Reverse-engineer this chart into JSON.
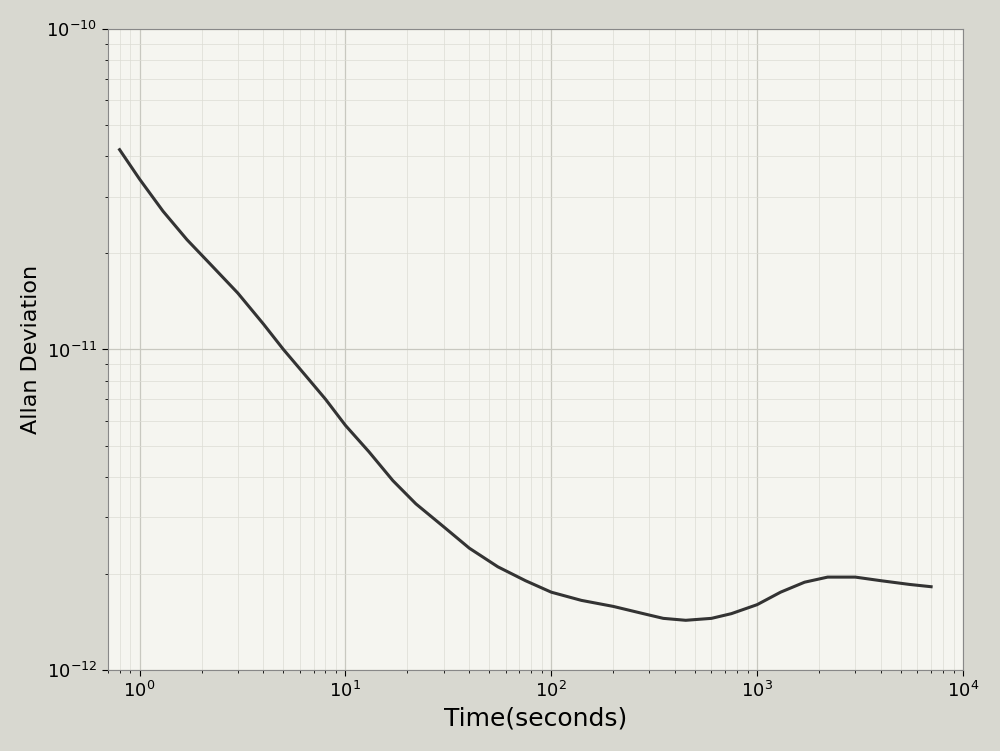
{
  "title": "",
  "xlabel": "Time(seconds)",
  "ylabel": "Allan Deviation",
  "xlim": [
    0.7,
    10000.0
  ],
  "ylim": [
    1e-12,
    1e-10
  ],
  "background_color": "#d8d8d0",
  "plot_bg_color": "#f5f5f0",
  "grid_major_color": "#c8c8c0",
  "grid_minor_color": "#dcdcd4",
  "line_color": "#333333",
  "line_width": 2.2,
  "curve_x": [
    0.8,
    1.0,
    1.3,
    1.7,
    2.2,
    3.0,
    4.0,
    5.0,
    6.5,
    8.0,
    10.0,
    13.0,
    17.0,
    22.0,
    30.0,
    40.0,
    55.0,
    75.0,
    100.0,
    140.0,
    200.0,
    280.0,
    350.0,
    450.0,
    600.0,
    750.0,
    1000.0,
    1300.0,
    1700.0,
    2200.0,
    3000.0,
    4000.0,
    5500.0,
    7000.0
  ],
  "curve_y": [
    4.2e-11,
    3.4e-11,
    2.7e-11,
    2.2e-11,
    1.85e-11,
    1.5e-11,
    1.2e-11,
    1e-11,
    8.2e-12,
    7e-12,
    5.8e-12,
    4.8e-12,
    3.9e-12,
    3.3e-12,
    2.8e-12,
    2.4e-12,
    2.1e-12,
    1.9e-12,
    1.75e-12,
    1.65e-12,
    1.58e-12,
    1.5e-12,
    1.45e-12,
    1.43e-12,
    1.45e-12,
    1.5e-12,
    1.6e-12,
    1.75e-12,
    1.88e-12,
    1.95e-12,
    1.95e-12,
    1.9e-12,
    1.85e-12,
    1.82e-12
  ],
  "xlabel_fontsize": 18,
  "ylabel_fontsize": 16,
  "tick_fontsize": 13,
  "xtick_labels": [
    "10$^{0}$",
    "10$^{1}$",
    "10$^{2}$",
    "10$^{3}$",
    "10$^{4}$"
  ],
  "xtick_positions": [
    1,
    10,
    100,
    1000,
    10000
  ],
  "ytick_labels": [
    "10$^{-12}$",
    "10$^{-11}$",
    "10$^{-10}$"
  ],
  "ytick_positions": [
    1e-12,
    1e-11,
    1e-10
  ]
}
